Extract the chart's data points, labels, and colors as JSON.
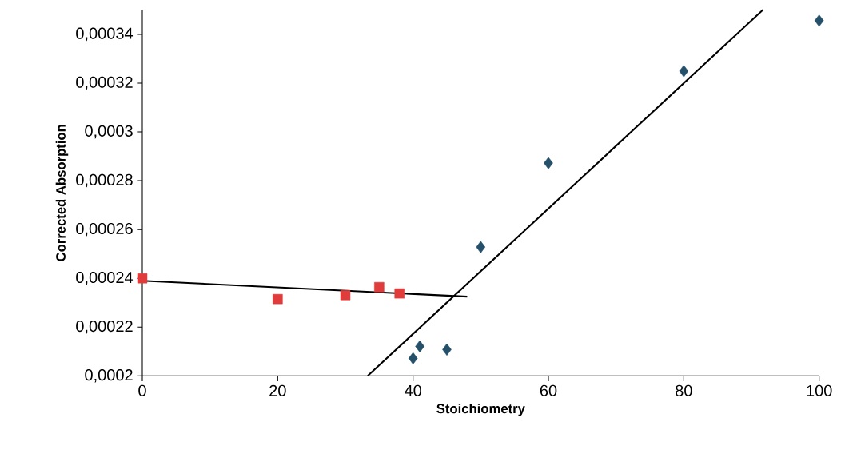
{
  "chart_data": {
    "type": "scatter",
    "xlabel": "Stoichiometry",
    "ylabel": "Corrected Absorption",
    "xlim": [
      0,
      100
    ],
    "ylim": [
      0.0002,
      0.00035
    ],
    "xticks": [
      0,
      20,
      40,
      60,
      80,
      100
    ],
    "yticks": [
      {
        "value": 0.0002,
        "label": "0,0002"
      },
      {
        "value": 0.00022,
        "label": "0,00022"
      },
      {
        "value": 0.00024,
        "label": "0,00024"
      },
      {
        "value": 0.00026,
        "label": "0,00026"
      },
      {
        "value": 0.00028,
        "label": "0,00028"
      },
      {
        "value": 0.0003,
        "label": "0,0003"
      },
      {
        "value": 0.00032,
        "label": "0,00032"
      },
      {
        "value": 0.00034,
        "label": "0,00034"
      }
    ],
    "grid": false,
    "series": [
      {
        "marker": "square",
        "color": "#e03c3c",
        "x": [
          0,
          20,
          30,
          35,
          38
        ],
        "values": [
          0.00024,
          0.0002315,
          0.0002331,
          0.0002364,
          0.0002338
        ]
      },
      {
        "marker": "diamond",
        "color": "#24506a",
        "x": [
          40,
          41,
          45,
          50,
          60,
          80,
          100
        ],
        "values": [
          0.0002072,
          0.0002121,
          0.0002108,
          0.0002528,
          0.0002872,
          0.0003249,
          0.0003456
        ]
      },
      {
        "type": "line",
        "marker": "none",
        "color": "#000000",
        "x": [
          0,
          48
        ],
        "values": [
          0.000239,
          0.0002325
        ]
      },
      {
        "type": "line",
        "marker": "none",
        "color": "#000000",
        "x": [
          33.3,
          91.7
        ],
        "values": [
          0.0002,
          0.00035
        ]
      }
    ]
  }
}
